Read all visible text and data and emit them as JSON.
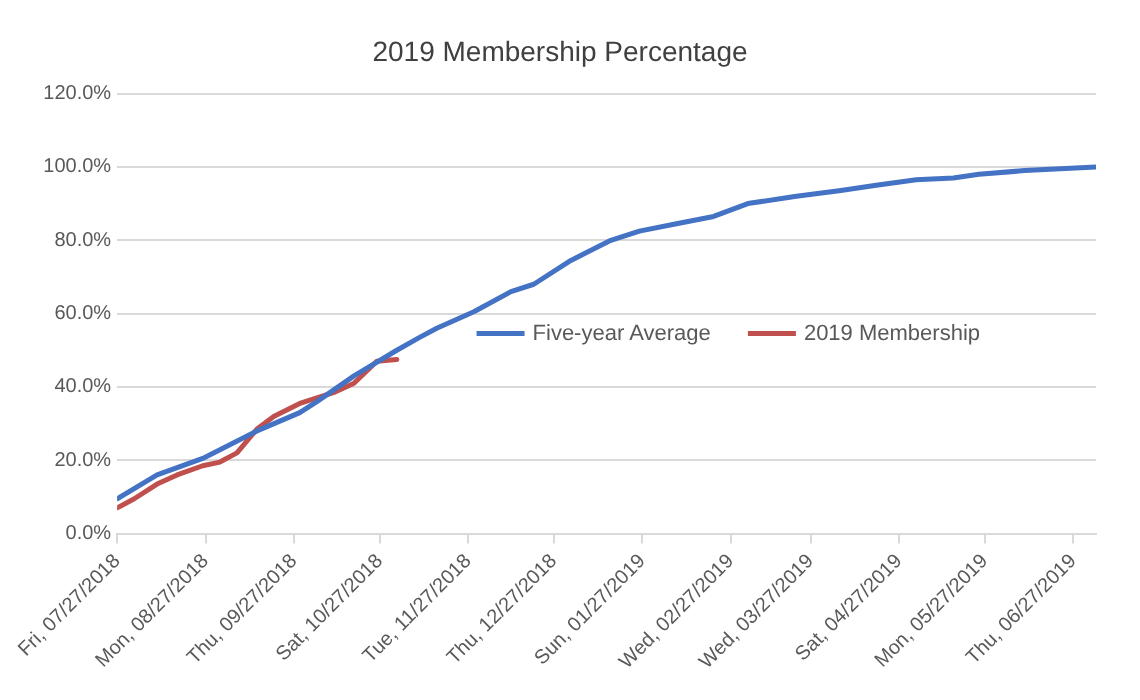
{
  "chart_data": {
    "type": "line",
    "title": "2019 Membership Percentage",
    "xlim": [
      "2018-07-27",
      "2019-07-05"
    ],
    "xticks": [
      {
        "value": "2018-07-27",
        "label": "Fri, 07/27/2018"
      },
      {
        "value": "2018-08-27",
        "label": "Mon, 08/27/2018"
      },
      {
        "value": "2018-09-27",
        "label": "Thu, 09/27/2018"
      },
      {
        "value": "2018-10-27",
        "label": "Sat, 10/27/2018"
      },
      {
        "value": "2018-11-27",
        "label": "Tue, 11/27/2018"
      },
      {
        "value": "2018-12-27",
        "label": "Thu, 12/27/2018"
      },
      {
        "value": "2019-01-27",
        "label": "Sun, 01/27/2019"
      },
      {
        "value": "2019-02-27",
        "label": "Wed, 02/27/2019"
      },
      {
        "value": "2019-03-27",
        "label": "Wed, 03/27/2019"
      },
      {
        "value": "2019-04-27",
        "label": "Sat, 04/27/2019"
      },
      {
        "value": "2019-05-27",
        "label": "Mon, 05/27/2019"
      },
      {
        "value": "2019-06-27",
        "label": "Thu, 06/27/2019"
      }
    ],
    "ylim": [
      0,
      120
    ],
    "yticks": [
      {
        "value": 0,
        "label": "0.0%"
      },
      {
        "value": 20,
        "label": "20.0%"
      },
      {
        "value": 40,
        "label": "40.0%"
      },
      {
        "value": 60,
        "label": "60.0%"
      },
      {
        "value": 80,
        "label": "80.0%"
      },
      {
        "value": 100,
        "label": "100.0%"
      },
      {
        "value": 120,
        "label": "120.0%"
      }
    ],
    "grid": "y",
    "legend": "right",
    "marker": "none",
    "line_style": "solid",
    "series": [
      {
        "name": "Five-year Average",
        "color": "#4472c4",
        "x": [
          "2018-07-27",
          "2018-08-10",
          "2018-08-26",
          "2018-09-14",
          "2018-09-29",
          "2018-10-05",
          "2018-10-18",
          "2018-11-02",
          "2018-11-10",
          "2018-11-16",
          "2018-11-29",
          "2018-12-12",
          "2018-12-20",
          "2019-01-02",
          "2019-01-16",
          "2019-01-26",
          "2019-02-08",
          "2019-02-21",
          "2019-03-05",
          "2019-03-22",
          "2019-04-06",
          "2019-04-19",
          "2019-05-03",
          "2019-05-16",
          "2019-05-25",
          "2019-06-10",
          "2019-07-05"
        ],
        "values": [
          9.5,
          16,
          20.5,
          28,
          33,
          36,
          43,
          50,
          53.5,
          56,
          60.5,
          66,
          68,
          74.5,
          80,
          82.5,
          84.5,
          86.5,
          90,
          92,
          93.5,
          95,
          96.5,
          97,
          98,
          99,
          100
        ]
      },
      {
        "name": "2019 Membership",
        "color": "#c0504d",
        "x": [
          "2018-07-27",
          "2018-08-02",
          "2018-08-10",
          "2018-08-17",
          "2018-08-26",
          "2018-09-01",
          "2018-09-07",
          "2018-09-14",
          "2018-09-20",
          "2018-09-29",
          "2018-10-05",
          "2018-10-11",
          "2018-10-18",
          "2018-10-26",
          "2018-11-02"
        ],
        "values": [
          7,
          9.5,
          13.5,
          16,
          18.5,
          19.5,
          22,
          28.5,
          32,
          35.5,
          37,
          38.5,
          41,
          47,
          47.5
        ]
      }
    ]
  }
}
